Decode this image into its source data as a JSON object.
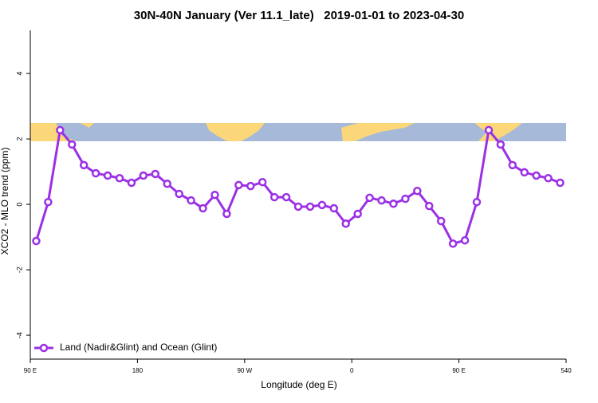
{
  "chart_data": {
    "type": "line",
    "title": "30N-40N January (Ver 11.1_late)   2019-01-01 to 2023-04-30",
    "x_label": "Longitude (deg E)",
    "y_label": "XCO2 - MLO trend (ppm)",
    "x": [
      95,
      105,
      115,
      125,
      135,
      145,
      155,
      165,
      175,
      185,
      195,
      205,
      215,
      225,
      235,
      245,
      255,
      265,
      275,
      285,
      295,
      305,
      315,
      325,
      335,
      345,
      355,
      365,
      375,
      385,
      395,
      405,
      415,
      425,
      435,
      445,
      455,
      465,
      475,
      485,
      495,
      505,
      515,
      525,
      535
    ],
    "series": [
      {
        "name": "Land (Nadir&Glint) and Ocean (Glint)",
        "color": "#9b30e6",
        "values": [
          -1.12,
          0.07,
          2.27,
          1.83,
          1.2,
          0.95,
          0.88,
          0.8,
          0.66,
          0.88,
          0.93,
          0.63,
          0.32,
          0.12,
          -0.12,
          0.29,
          -0.29,
          0.59,
          0.56,
          0.68,
          0.22,
          0.22,
          -0.07,
          -0.07,
          -0.02,
          -0.12,
          -0.59,
          -0.29,
          0.2,
          0.12,
          0.02,
          0.17,
          0.41,
          -0.05,
          -0.51,
          -1.2,
          -1.1,
          0.07,
          2.27,
          1.83,
          1.2,
          0.98,
          0.88,
          0.8,
          0.66
        ]
      }
    ],
    "xlim": [
      90,
      540
    ],
    "xticks": [
      {
        "value": 90,
        "label": "90 E"
      },
      180,
      {
        "value": 270,
        "label": "90 W"
      },
      {
        "value": 360,
        "label": "0"
      },
      {
        "value": 450,
        "label": "90 E"
      },
      540
    ],
    "ylim": [
      -4.73,
      5.32
    ],
    "yticks": [
      -4,
      -2,
      0,
      2,
      4
    ],
    "legend": "bottom-left"
  }
}
